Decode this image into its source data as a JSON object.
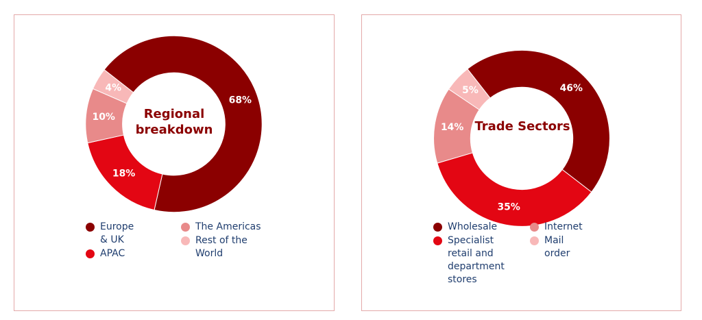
{
  "chart_data": [
    {
      "type": "pie",
      "title": "Regional breakdown",
      "categories": [
        "Europe & UK",
        "APAC",
        "The Americas",
        "Rest of the World"
      ],
      "values": [
        68,
        18,
        10,
        4
      ],
      "value_labels": [
        "68%",
        "18%",
        "10%",
        "4%"
      ],
      "colors": [
        "#8b0000",
        "#e30613",
        "#e88a8a",
        "#f8b8b8"
      ],
      "legend": "bottom"
    },
    {
      "type": "pie",
      "title": "Trade Sectors",
      "categories": [
        "Wholesale",
        "Specialist retail and department stores",
        "Internet",
        "Mail order"
      ],
      "values": [
        46,
        35,
        14,
        5
      ],
      "value_labels": [
        "46%",
        "35%",
        "14%",
        "5%"
      ],
      "colors": [
        "#8b0000",
        "#e30613",
        "#e88a8a",
        "#f8b8b8"
      ],
      "legend": "bottom"
    }
  ]
}
